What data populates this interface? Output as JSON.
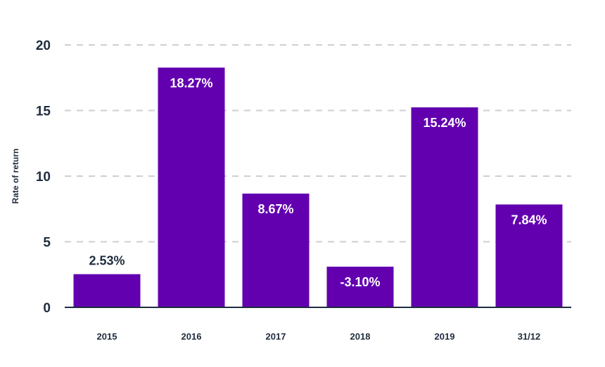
{
  "chart_data": {
    "type": "bar",
    "categories": [
      "2015",
      "2016",
      "2017",
      "2018",
      "2019",
      "31/12"
    ],
    "values": [
      2.53,
      18.27,
      8.67,
      -3.1,
      15.24,
      7.84
    ],
    "bar_display_heights": [
      2.53,
      18.27,
      8.67,
      3.1,
      15.24,
      7.84
    ],
    "data_labels": [
      "2.53%",
      "18.27%",
      "8.67%",
      "-3.10%",
      "15.24%",
      "7.84%"
    ],
    "ylabel": "Rate of return",
    "xlabel": "",
    "title": "",
    "ylim": [
      0,
      20
    ],
    "yticks": [
      "0",
      "5",
      "10",
      "15",
      "20"
    ],
    "grid": "horizontal dashed",
    "legend": "none"
  },
  "colors": {
    "bar": "#6200b0",
    "grid": "#cfcfcf",
    "axis": "#1f2d3d",
    "text": "#1f2d3d",
    "label_inside": "#ffffff",
    "label_outside": "#1f2d3d"
  }
}
